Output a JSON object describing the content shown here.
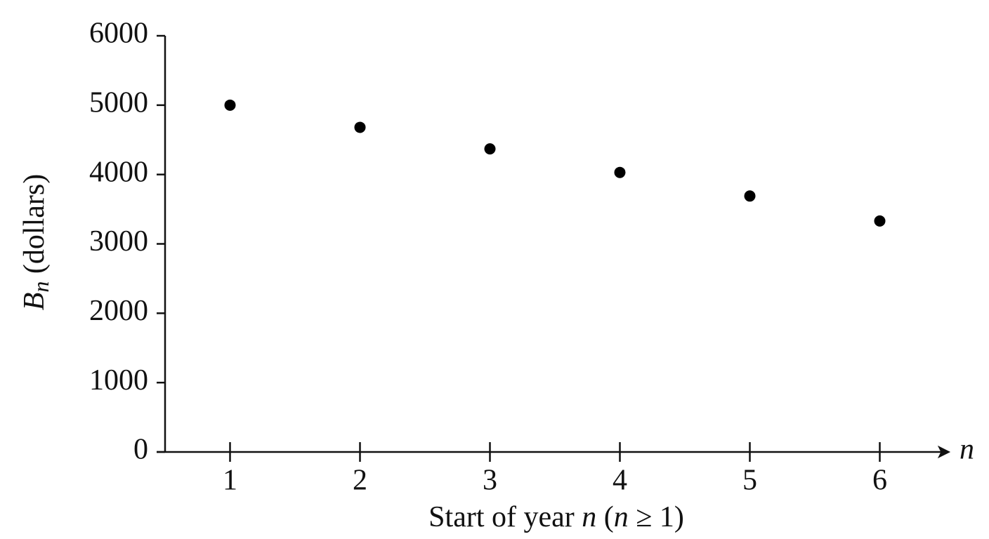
{
  "chart_data": {
    "type": "scatter",
    "ylabel": [
      "B",
      "n",
      " (dollars)"
    ],
    "xlabel": [
      "Start of year ",
      "n",
      " (",
      "n",
      " ≥ 1)"
    ],
    "x_axis_symbol": "n",
    "x": [
      1,
      2,
      3,
      4,
      5,
      6
    ],
    "values": [
      5000,
      4680,
      4370,
      4030,
      3690,
      3330
    ],
    "color": "#000000",
    "xlim": [
      0.5,
      6.5
    ],
    "xticks": [
      1,
      2,
      3,
      4,
      5,
      6
    ],
    "ylim": [
      0,
      6000
    ],
    "yticks": [
      0,
      1000,
      2000,
      3000,
      4000,
      5000,
      6000
    ]
  }
}
